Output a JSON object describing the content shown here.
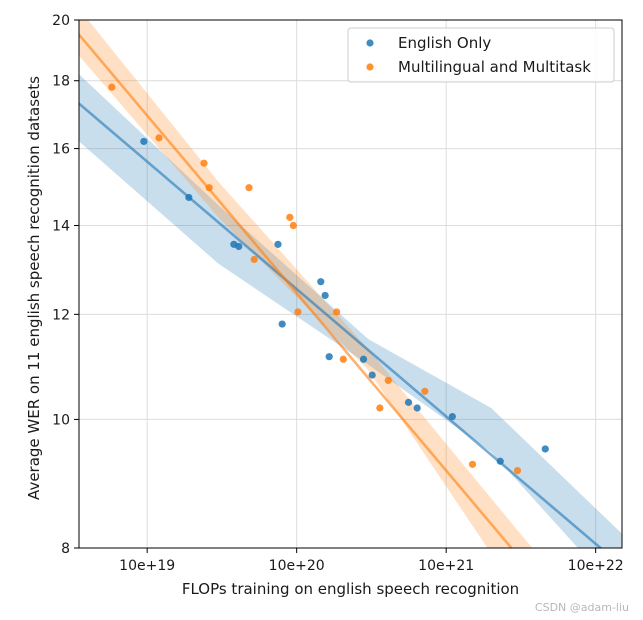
{
  "chart_data": {
    "type": "scatter",
    "title": "",
    "xlabel": "FLOPs training on english speech recognition",
    "ylabel": "Average WER on 11 english speech recognition datasets",
    "xscale": "log",
    "yscale": "log",
    "xlim": [
      3.5e+18,
      1.5e+22
    ],
    "ylim": [
      8,
      20
    ],
    "xticks": [
      {
        "value": 1e+19,
        "label": "10e+19"
      },
      {
        "value": 1e+20,
        "label": "10e+20"
      },
      {
        "value": 1e+21,
        "label": "10e+21"
      },
      {
        "value": 1e+22,
        "label": "10e+22"
      }
    ],
    "yticks": [
      {
        "value": 8,
        "label": "8"
      },
      {
        "value": 10,
        "label": "10"
      },
      {
        "value": 12,
        "label": "12"
      },
      {
        "value": 14,
        "label": "14"
      },
      {
        "value": 16,
        "label": "16"
      },
      {
        "value": 18,
        "label": "18"
      },
      {
        "value": 20,
        "label": "20"
      }
    ],
    "grid": true,
    "legend_position": "top-right",
    "series": [
      {
        "name": "English Only",
        "color": "#1f77b4",
        "points": [
          {
            "x": 9.5e+18,
            "y": 16.2
          },
          {
            "x": 1.9e+19,
            "y": 14.7
          },
          {
            "x": 3.8e+19,
            "y": 13.55
          },
          {
            "x": 4.1e+19,
            "y": 13.5
          },
          {
            "x": 7.5e+19,
            "y": 13.55
          },
          {
            "x": 8e+19,
            "y": 11.8
          },
          {
            "x": 1.45e+20,
            "y": 12.7
          },
          {
            "x": 1.55e+20,
            "y": 12.4
          },
          {
            "x": 1.65e+20,
            "y": 11.15
          },
          {
            "x": 2.8e+20,
            "y": 11.1
          },
          {
            "x": 3.2e+20,
            "y": 10.8
          },
          {
            "x": 5.6e+20,
            "y": 10.3
          },
          {
            "x": 6.4e+20,
            "y": 10.2
          },
          {
            "x": 1.1e+21,
            "y": 10.05
          },
          {
            "x": 2.3e+21,
            "y": 9.3
          },
          {
            "x": 4.6e+21,
            "y": 9.5
          }
        ],
        "fit": {
          "x": [
            3.5e+18,
            1.5e+22
          ],
          "y": [
            17.3,
            7.75
          ]
        },
        "band": {
          "x": [
            3.5e+18,
            3e+19,
            3e+20,
            2e+21,
            1.5e+22
          ],
          "lower": [
            16.2,
            13.1,
            11.0,
            9.45,
            7.35
          ],
          "upper": [
            18.2,
            14.5,
            11.5,
            10.2,
            8.2
          ]
        }
      },
      {
        "name": "Multilingual and Multitask",
        "color": "#ff7f0e",
        "points": [
          {
            "x": 5.8e+18,
            "y": 17.8
          },
          {
            "x": 1.2e+19,
            "y": 16.3
          },
          {
            "x": 2.4e+19,
            "y": 15.6
          },
          {
            "x": 2.6e+19,
            "y": 14.95
          },
          {
            "x": 4.8e+19,
            "y": 14.95
          },
          {
            "x": 5.2e+19,
            "y": 13.2
          },
          {
            "x": 9e+19,
            "y": 14.2
          },
          {
            "x": 9.5e+19,
            "y": 14.0
          },
          {
            "x": 1.02e+20,
            "y": 12.05
          },
          {
            "x": 1.85e+20,
            "y": 12.05
          },
          {
            "x": 2.05e+20,
            "y": 11.1
          },
          {
            "x": 3.6e+20,
            "y": 10.2
          },
          {
            "x": 4.1e+20,
            "y": 10.7
          },
          {
            "x": 7.2e+20,
            "y": 10.5
          },
          {
            "x": 1.5e+21,
            "y": 9.25
          },
          {
            "x": 3e+21,
            "y": 9.15
          }
        ],
        "fit": {
          "x": [
            3.5e+18,
            3e+21
          ],
          "y": [
            19.5,
            7.9
          ]
        },
        "band": {
          "x": [
            3.5e+18,
            3e+19,
            3e+20,
            3e+21,
            5e+21
          ],
          "lower": [
            18.8,
            14.2,
            10.9,
            7.4,
            6.9
          ],
          "upper": [
            20.4,
            15.1,
            11.3,
            8.25,
            7.7
          ]
        }
      }
    ]
  },
  "watermark": "CSDN @adam-liu"
}
